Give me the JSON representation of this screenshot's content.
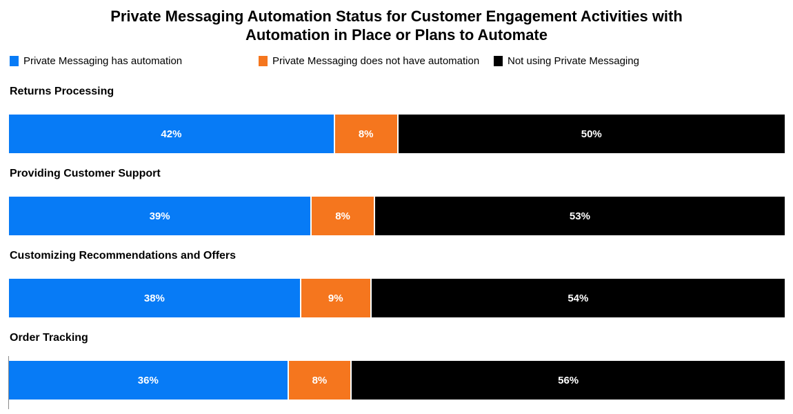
{
  "title": "Private Messaging Automation Status for Customer Engagement Activities with Automation in Place or Plans to Automate",
  "legend": [
    {
      "label": "Private Messaging has automation",
      "color": "#077bf6"
    },
    {
      "label": "Private Messaging does not have automation",
      "color": "#f5761e"
    },
    {
      "label": "Not using Private Messaging",
      "color": "#000000"
    }
  ],
  "chart_data": {
    "type": "bar",
    "orientation": "horizontal-stacked",
    "title": "Private Messaging Automation Status for Customer Engagement Activities with Automation in Place or Plans to Automate",
    "categories": [
      "Returns Processing",
      "Providing Customer Support",
      "Customizing Recommendations and Offers",
      "Order Tracking"
    ],
    "series": [
      {
        "name": "Private Messaging has automation",
        "color": "#077bf6",
        "values": [
          42,
          39,
          38,
          36
        ]
      },
      {
        "name": "Private Messaging does not have automation",
        "color": "#f5761e",
        "values": [
          8,
          8,
          9,
          8
        ]
      },
      {
        "name": "Not using Private Messaging",
        "color": "#000000",
        "values": [
          50,
          53,
          54,
          56
        ]
      }
    ],
    "value_suffix": "%",
    "xlim": [
      0,
      100
    ],
    "grid": false,
    "legend_position": "top-left",
    "value_labels": "inside-center-white-bold"
  }
}
